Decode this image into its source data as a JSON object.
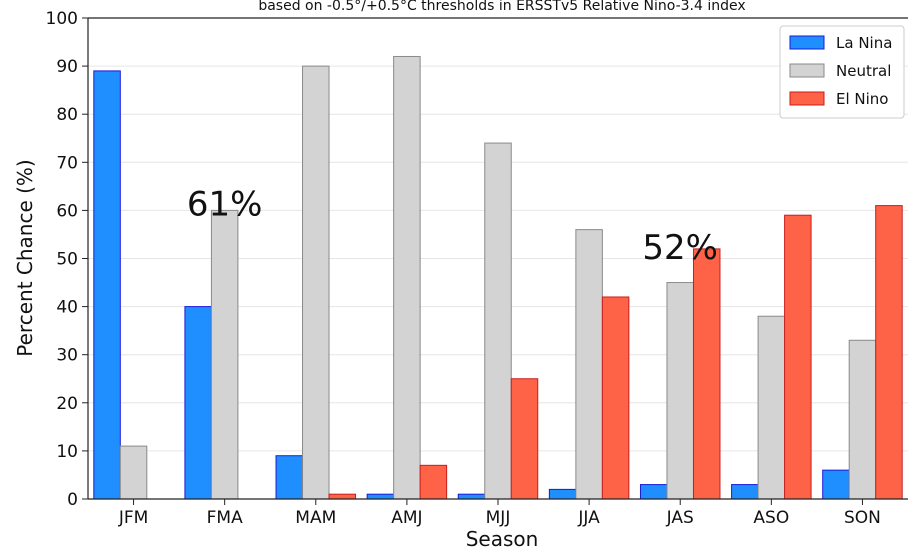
{
  "chart_data": {
    "type": "bar",
    "title": "based on -0.5°/+0.5°C thresholds in ERSSTv5 Relative Nino-3.4 index",
    "xlabel": "Season",
    "ylabel": "Percent Chance (%)",
    "ylim": [
      0,
      100
    ],
    "yticks": [
      0,
      10,
      20,
      30,
      40,
      50,
      60,
      70,
      80,
      90,
      100
    ],
    "grid": true,
    "legend_position": "top-right",
    "categories": [
      "JFM",
      "FMA",
      "MAM",
      "AMJ",
      "MJJ",
      "JJA",
      "JAS",
      "ASO",
      "SON"
    ],
    "series": [
      {
        "name": "La Nina",
        "color": "#1f8fff",
        "edge": "#1a1adb",
        "values": [
          89,
          40,
          9,
          1,
          1,
          2,
          3,
          3,
          6
        ]
      },
      {
        "name": "Neutral",
        "color": "#d3d3d3",
        "edge": "#8a8a8a",
        "values": [
          11,
          60,
          90,
          92,
          74,
          56,
          45,
          38,
          33
        ]
      },
      {
        "name": "El Nino",
        "color": "#ff6347",
        "edge": "#c81e1e",
        "values": [
          0,
          0,
          1,
          7,
          25,
          42,
          52,
          59,
          61
        ]
      }
    ],
    "annotations": [
      {
        "text": "61%",
        "category": "FMA",
        "y": 61
      },
      {
        "text": "52%",
        "category": "JAS",
        "y": 52
      }
    ]
  }
}
